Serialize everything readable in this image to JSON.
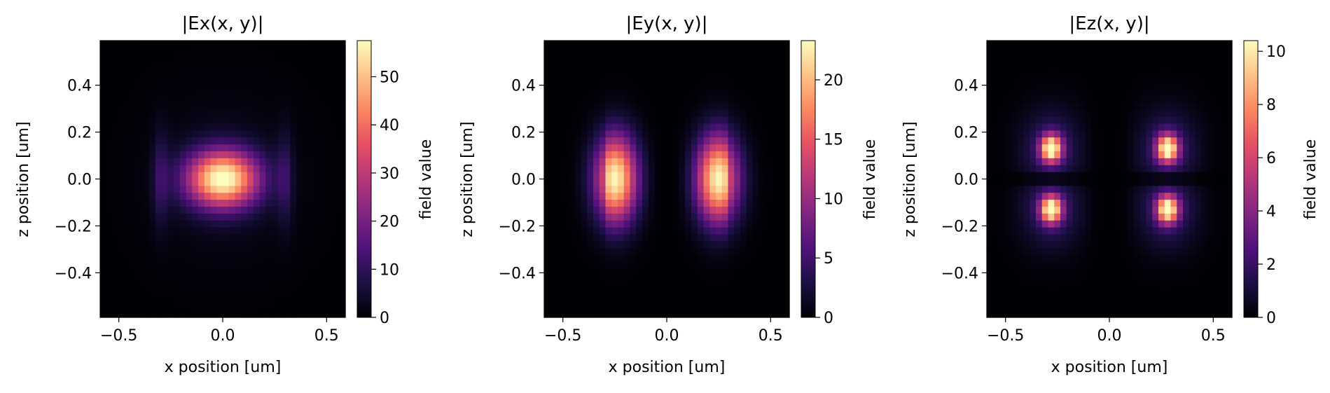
{
  "chart_data": [
    {
      "type": "heatmap",
      "title": "|Ex(x, y)|",
      "xlabel": "x position [um]",
      "ylabel": "z position [um]",
      "colorbar_label": "field value",
      "colormap": "magma",
      "xlim": [
        -0.59,
        0.59
      ],
      "ylim": [
        -0.59,
        0.59
      ],
      "xticks": [
        -0.5,
        0.0,
        0.5
      ],
      "xtick_labels": [
        "−0.5",
        "0.0",
        "0.5"
      ],
      "yticks": [
        0.4,
        0.2,
        0.0,
        -0.2,
        -0.4
      ],
      "ytick_labels": [
        "0.4",
        "0.2",
        "0.0",
        "−0.2",
        "−0.4"
      ],
      "vmin": 0,
      "vmax": 57.5,
      "colorbar_ticks": [
        0,
        10,
        20,
        30,
        40,
        50
      ],
      "colorbar_tick_labels": [
        "0",
        "10",
        "20",
        "30",
        "40",
        "50"
      ],
      "grid": false,
      "field_description": "central elliptical lobe peaking ~57 at origin, with weak vertical side bands near x = ±0.3"
    },
    {
      "type": "heatmap",
      "title": "|Ey(x, y)|",
      "xlabel": "x position [um]",
      "ylabel": "z position [um]",
      "colorbar_label": "field value",
      "colormap": "magma",
      "xlim": [
        -0.59,
        0.59
      ],
      "ylim": [
        -0.59,
        0.59
      ],
      "xticks": [
        -0.5,
        0.0,
        0.5
      ],
      "xtick_labels": [
        "−0.5",
        "0.0",
        "0.5"
      ],
      "yticks": [
        0.4,
        0.2,
        0.0,
        -0.2,
        -0.4
      ],
      "ytick_labels": [
        "0.4",
        "0.2",
        "0.0",
        "−0.2",
        "−0.4"
      ],
      "vmin": 0,
      "vmax": 23.3,
      "colorbar_ticks": [
        0,
        5,
        10,
        15,
        20
      ],
      "colorbar_tick_labels": [
        "0",
        "5",
        "10",
        "15",
        "20"
      ],
      "grid": false,
      "field_description": "two lobes at x = ±0.25, z = 0, peaking ~23, zero along x = 0"
    },
    {
      "type": "heatmap",
      "title": "|Ez(x, y)|",
      "xlabel": "x position [um]",
      "ylabel": "z position [um]",
      "colorbar_label": "field value",
      "colormap": "magma",
      "xlim": [
        -0.59,
        0.59
      ],
      "ylim": [
        -0.59,
        0.59
      ],
      "xticks": [
        -0.5,
        0.0,
        0.5
      ],
      "xtick_labels": [
        "−0.5",
        "0.0",
        "0.5"
      ],
      "yticks": [
        0.4,
        0.2,
        0.0,
        -0.2,
        -0.4
      ],
      "ytick_labels": [
        "0.4",
        "0.2",
        "0.0",
        "−0.2",
        "−0.4"
      ],
      "vmin": 0,
      "vmax": 10.4,
      "colorbar_ticks": [
        0,
        2,
        4,
        6,
        8,
        10
      ],
      "colorbar_tick_labels": [
        "0",
        "2",
        "4",
        "6",
        "8",
        "10"
      ],
      "grid": false,
      "field_description": "four hot spots at (±0.28, ±0.13), peaking ~10, zero along x = 0 and z = 0"
    }
  ]
}
